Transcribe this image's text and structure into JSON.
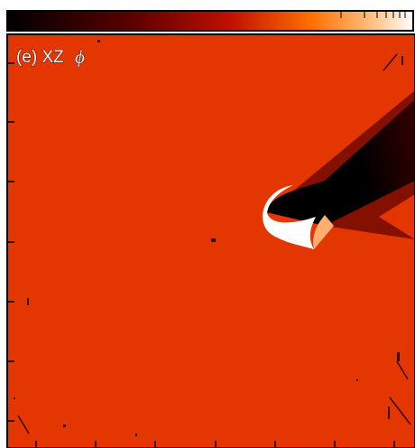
{
  "panel": {
    "label": "(e) XZ",
    "symbol": "ϕ"
  }
}
